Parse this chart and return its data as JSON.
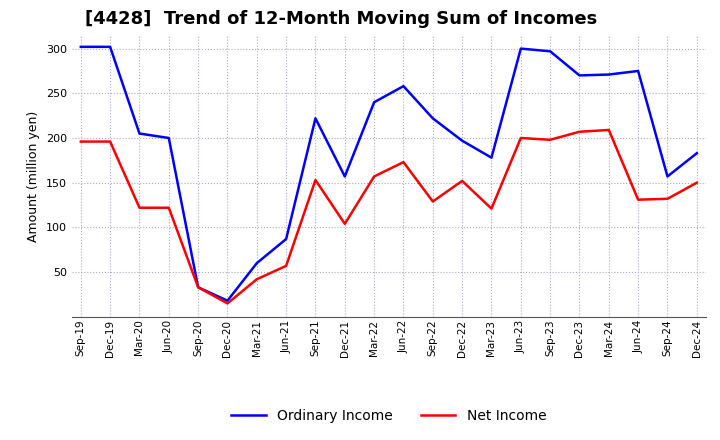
{
  "title": "[4428]  Trend of 12-Month Moving Sum of Incomes",
  "ylabel": "Amount (million yen)",
  "ylim": [
    0,
    315
  ],
  "yticks": [
    50,
    100,
    150,
    200,
    250,
    300
  ],
  "x_labels": [
    "Sep-19",
    "Dec-19",
    "Mar-20",
    "Jun-20",
    "Sep-20",
    "Dec-20",
    "Mar-21",
    "Jun-21",
    "Sep-21",
    "Dec-21",
    "Mar-22",
    "Jun-22",
    "Sep-22",
    "Dec-22",
    "Mar-23",
    "Jun-23",
    "Sep-23",
    "Dec-23",
    "Mar-24",
    "Jun-24",
    "Sep-24",
    "Dec-24"
  ],
  "ordinary_income": [
    302,
    302,
    205,
    200,
    33,
    18,
    60,
    87,
    222,
    157,
    240,
    258,
    222,
    197,
    178,
    300,
    297,
    270,
    271,
    275,
    157,
    183
  ],
  "net_income": [
    196,
    196,
    122,
    122,
    33,
    15,
    42,
    57,
    153,
    104,
    157,
    173,
    129,
    152,
    121,
    200,
    198,
    207,
    209,
    131,
    132,
    150
  ],
  "ordinary_color": "#0000ff",
  "net_color": "#ff0000",
  "background_color": "#ffffff",
  "grid_color": "#aaaacc",
  "title_fontsize": 13,
  "label_fontsize": 9
}
